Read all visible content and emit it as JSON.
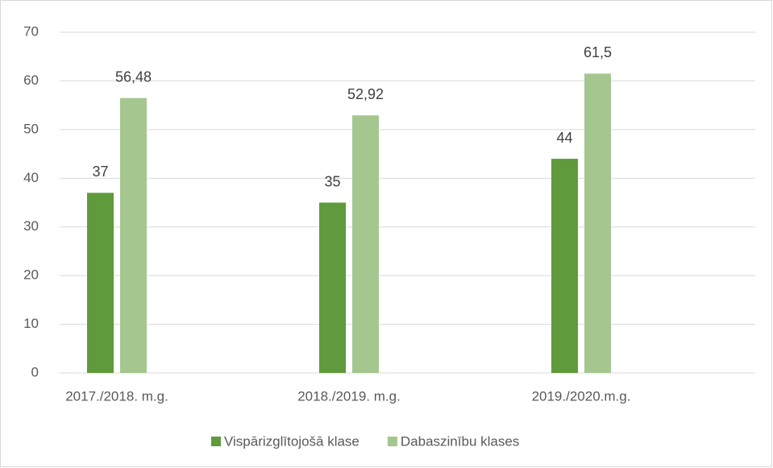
{
  "chart_data": {
    "type": "bar",
    "categories": [
      "2017./2018. m.g.",
      "2018./2019. m.g.",
      "2019./2020.m.g."
    ],
    "series": [
      {
        "name": "Vispārizglītojošā klase",
        "color": "#5f9a3c",
        "values": [
          37,
          35,
          44
        ]
      },
      {
        "name": "Dabaszinību klases",
        "color": "#a5c78f",
        "values": [
          56.48,
          52.92,
          61.5
        ],
        "value_labels": [
          "56,48",
          "52,92",
          "61,5"
        ]
      }
    ],
    "ylim": [
      0,
      70
    ],
    "yticks": [
      0,
      10,
      20,
      30,
      40,
      50,
      60,
      70
    ],
    "grid": true,
    "legend": "bottom"
  }
}
